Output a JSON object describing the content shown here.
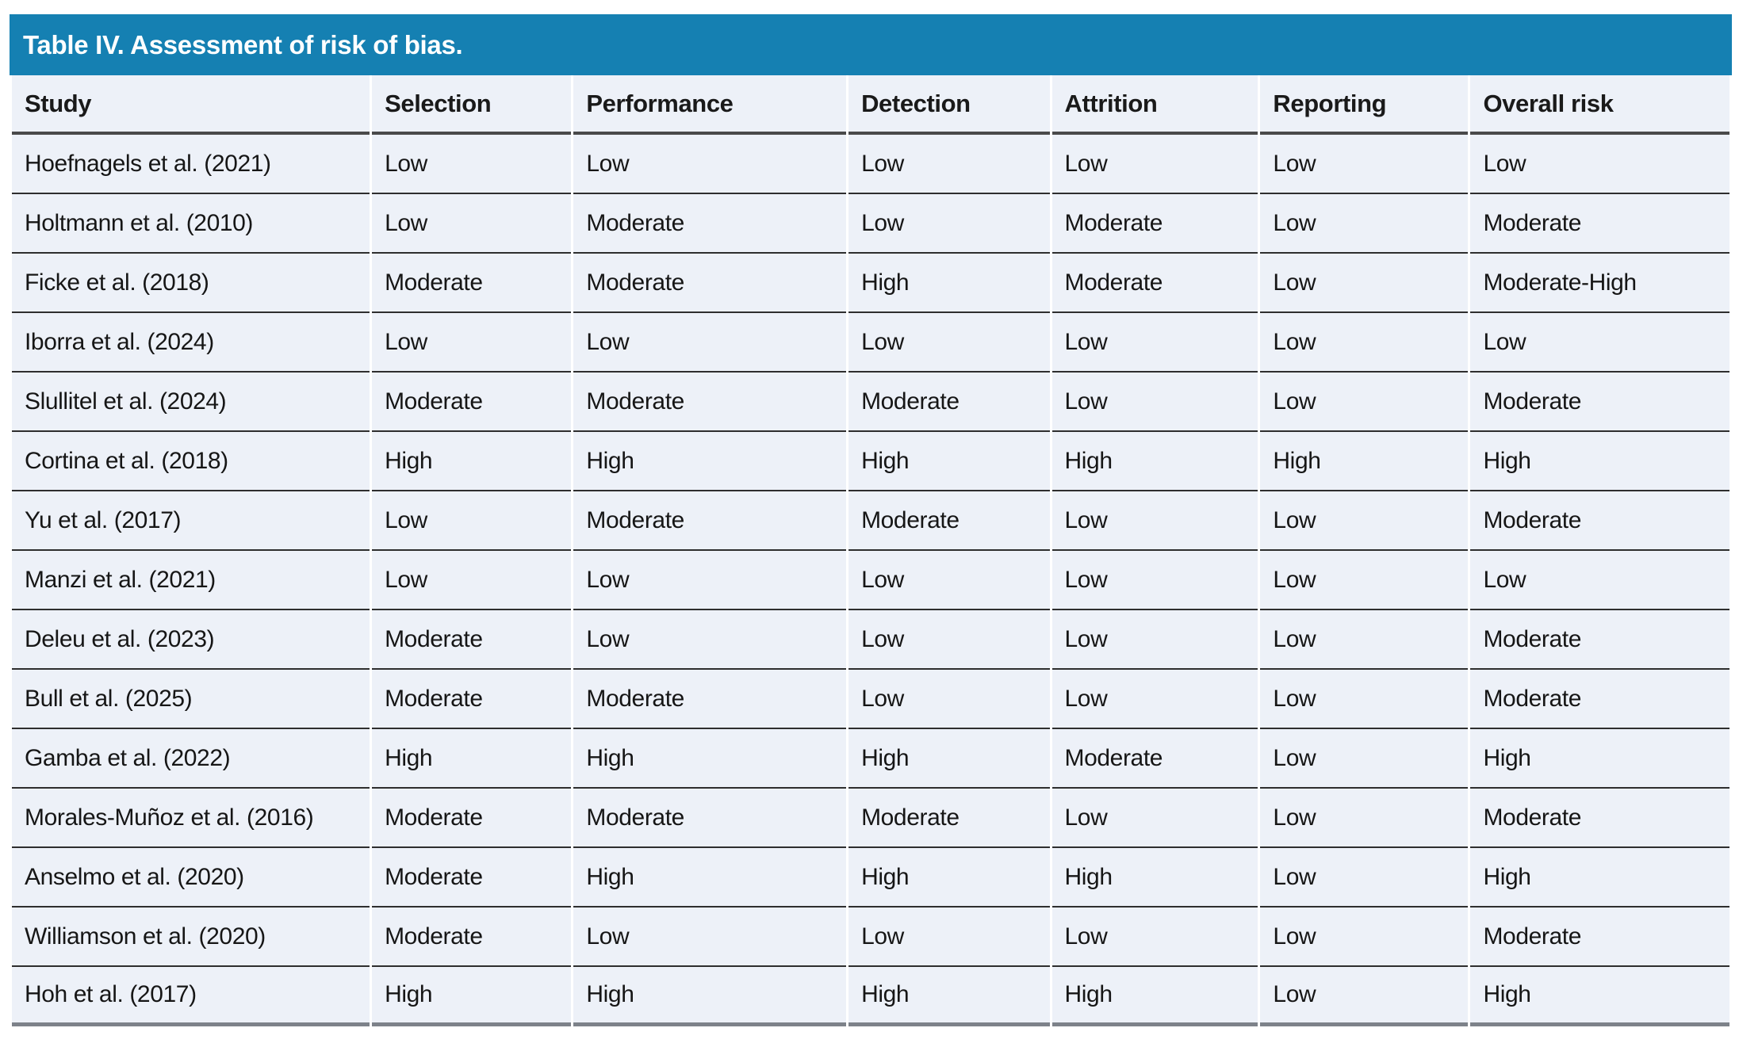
{
  "title": "Table IV. Assessment of risk of bias.",
  "colors": {
    "accent": "#1580b2",
    "row_background": "#edf1f8",
    "title_text": "#ffffff",
    "body_text": "#161616",
    "row_divider": "#2e2e2e",
    "header_divider": "#4a4a4a",
    "bottom_border": "#7d828a"
  },
  "table": {
    "columns": [
      "Study",
      "Selection",
      "Performance",
      "Detection",
      "Attrition",
      "Reporting",
      "Overall risk"
    ],
    "rows": [
      [
        "Hoefnagels et al. (2021)",
        "Low",
        "Low",
        "Low",
        "Low",
        "Low",
        "Low"
      ],
      [
        "Holtmann et al. (2010)",
        "Low",
        "Moderate",
        "Low",
        "Moderate",
        "Low",
        "Moderate"
      ],
      [
        "Ficke et al. (2018)",
        "Moderate",
        "Moderate",
        "High",
        "Moderate",
        "Low",
        "Moderate-High"
      ],
      [
        "Iborra et al. (2024)",
        "Low",
        "Low",
        "Low",
        "Low",
        "Low",
        "Low"
      ],
      [
        "Slullitel et al. (2024)",
        "Moderate",
        "Moderate",
        "Moderate",
        "Low",
        "Low",
        "Moderate"
      ],
      [
        "Cortina et al. (2018)",
        "High",
        "High",
        "High",
        "High",
        "High",
        "High"
      ],
      [
        "Yu et al. (2017)",
        "Low",
        "Moderate",
        "Moderate",
        "Low",
        "Low",
        "Moderate"
      ],
      [
        "Manzi et al. (2021)",
        "Low",
        "Low",
        "Low",
        "Low",
        "Low",
        "Low"
      ],
      [
        "Deleu et al. (2023)",
        "Moderate",
        "Low",
        "Low",
        "Low",
        "Low",
        "Moderate"
      ],
      [
        "Bull et al. (2025)",
        "Moderate",
        "Moderate",
        "Low",
        "Low",
        "Low",
        "Moderate"
      ],
      [
        "Gamba et al. (2022)",
        "High",
        "High",
        "High",
        "Moderate",
        "Low",
        "High"
      ],
      [
        "Morales-Muñoz et al. (2016)",
        "Moderate",
        "Moderate",
        "Moderate",
        "Low",
        "Low",
        "Moderate"
      ],
      [
        "Anselmo et al. (2020)",
        "Moderate",
        "High",
        "High",
        "High",
        "Low",
        "High"
      ],
      [
        "Williamson et al. (2020)",
        "Moderate",
        "Low",
        "Low",
        "Low",
        "Low",
        "Moderate"
      ],
      [
        "Hoh et al. (2017)",
        "High",
        "High",
        "High",
        "High",
        "Low",
        "High"
      ]
    ]
  }
}
